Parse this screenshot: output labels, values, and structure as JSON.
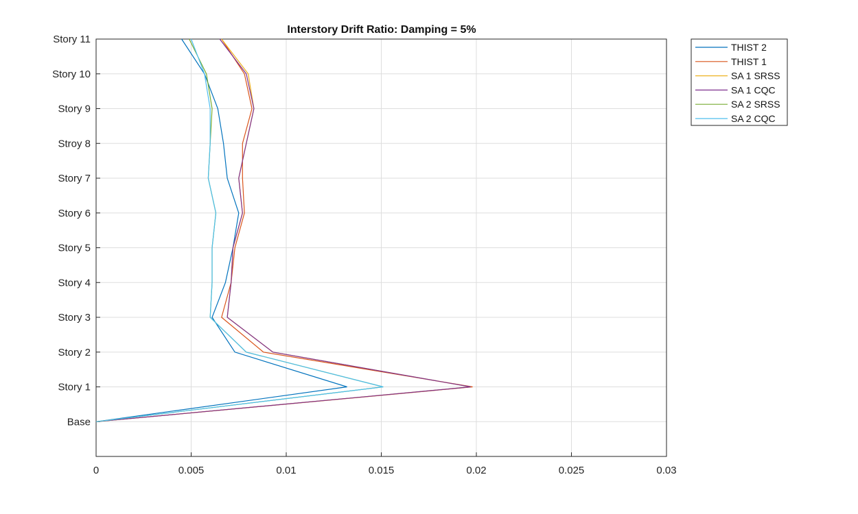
{
  "chart_data": {
    "type": "line",
    "title": "Interstory Drift Ratio: Damping = 5%",
    "xlabel": "",
    "ylabel": "",
    "xlim": [
      0,
      0.03
    ],
    "x_ticks": [
      0,
      0.005,
      0.01,
      0.015,
      0.02,
      0.025,
      0.03
    ],
    "x_tick_labels": [
      "0",
      "0.005",
      "0.01",
      "0.015",
      "0.02",
      "0.025",
      "0.03"
    ],
    "categories": [
      "Base",
      "Story 1",
      "Story 2",
      "Story 3",
      "Story 4",
      "Story 5",
      "Story 6",
      "Story 7",
      "Stroy 8",
      "Story 9",
      "Story 10",
      "Story 11"
    ],
    "grid": true,
    "legend_position": "outside-top-right",
    "series": [
      {
        "name": "THIST 2",
        "color": "#0072BD",
        "values": [
          0,
          0.0132,
          0.0073,
          0.0061,
          0.0068,
          0.0072,
          0.0075,
          0.0069,
          0.0067,
          0.0064,
          0.0057,
          0.0045
        ]
      },
      {
        "name": "THIST 1",
        "color": "#D95319",
        "values": [
          0,
          0.0198,
          0.0088,
          0.0066,
          0.0071,
          0.0073,
          0.0078,
          0.0077,
          0.0077,
          0.0082,
          0.0078,
          0.0066
        ]
      },
      {
        "name": "SA 1 SRSS",
        "color": "#EDB120",
        "values": [
          0,
          0.0197,
          0.0093,
          0.0069,
          0.0071,
          0.0072,
          0.0077,
          0.0075,
          0.0079,
          0.0083,
          0.008,
          0.0066
        ]
      },
      {
        "name": "SA 1 CQC",
        "color": "#7E2F8E",
        "values": [
          0,
          0.0197,
          0.0093,
          0.0069,
          0.0071,
          0.0072,
          0.0077,
          0.0075,
          0.0079,
          0.0083,
          0.0079,
          0.0065
        ]
      },
      {
        "name": "SA 2 SRSS",
        "color": "#77AC30",
        "values": [
          0,
          0.0151,
          0.0079,
          0.006,
          0.0061,
          0.0061,
          0.0063,
          0.0059,
          0.006,
          0.0061,
          0.0058,
          0.0049
        ]
      },
      {
        "name": "SA 2 CQC",
        "color": "#4DBEEE",
        "values": [
          0,
          0.0151,
          0.0079,
          0.006,
          0.0061,
          0.0061,
          0.0063,
          0.0059,
          0.006,
          0.006,
          0.0057,
          0.005
        ]
      }
    ]
  }
}
